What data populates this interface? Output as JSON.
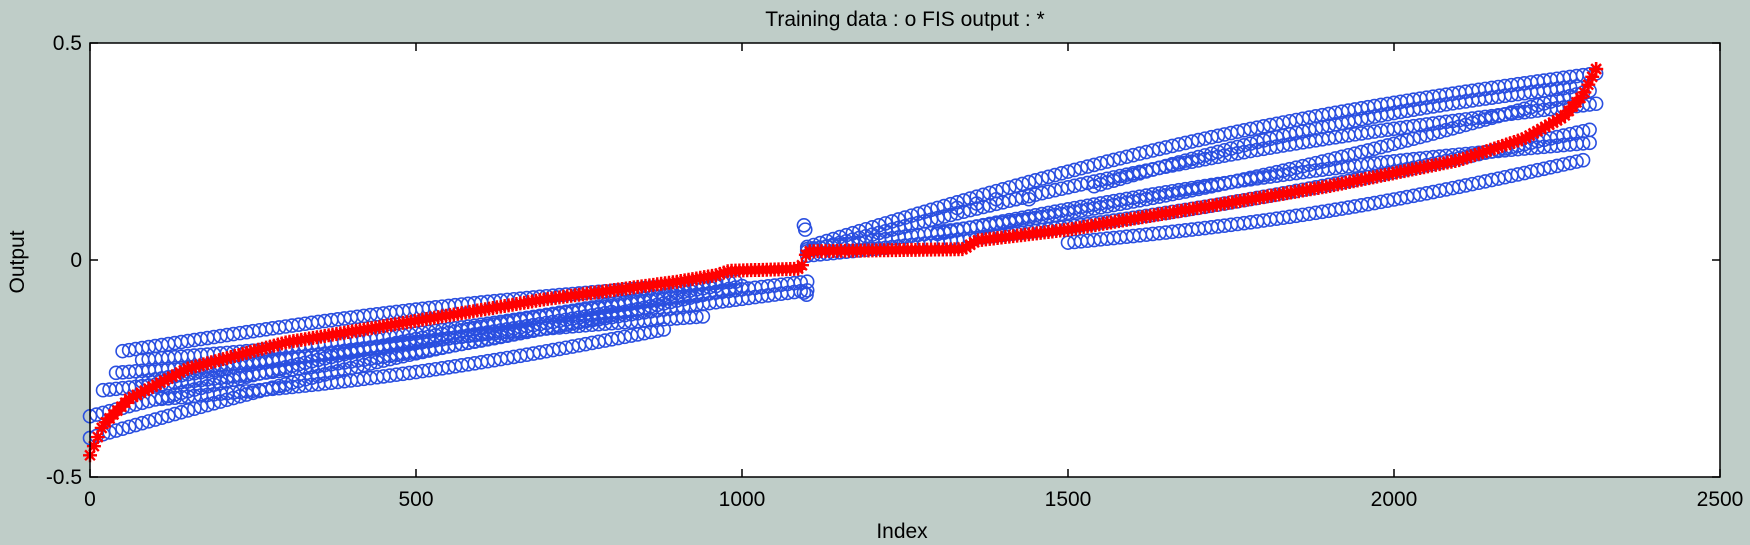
{
  "chart_data": {
    "type": "scatter",
    "title": "Training data : o   FIS output : *",
    "xlabel": "Index",
    "ylabel": "Output",
    "xlim": [
      0,
      2500
    ],
    "ylim": [
      -0.5,
      0.5
    ],
    "x_ticks": [
      {
        "value": 0,
        "label": "0"
      },
      {
        "value": 500,
        "label": "500"
      },
      {
        "value": 1000,
        "label": "1000"
      },
      {
        "value": 1500,
        "label": "1500"
      },
      {
        "value": 2000,
        "label": "2000"
      },
      {
        "value": 2500,
        "label": "2500"
      }
    ],
    "y_ticks": [
      {
        "value": -0.5,
        "label": "-0.5"
      },
      {
        "value": 0,
        "label": "0"
      },
      {
        "value": 0.5,
        "label": "0.5"
      }
    ],
    "grid": false,
    "legend": "none",
    "colors": {
      "background": "#bfcdc8",
      "plot_area": "#ffffff",
      "training": "#2a4fe0",
      "fis": "#ff0000",
      "axis": "#000000"
    },
    "series": [
      {
        "marker": "o",
        "color": "#2a4fe0",
        "sampling_step": 10,
        "bands": [
          {
            "x": [
              0,
              1100
            ],
            "y": [
              -0.36,
              -0.05
            ]
          },
          {
            "x": [
              20,
              1000
            ],
            "y": [
              -0.3,
              -0.06
            ]
          },
          {
            "x": [
              50,
              990
            ],
            "y": [
              -0.21,
              -0.05
            ]
          },
          {
            "x": [
              80,
              960
            ],
            "y": [
              -0.23,
              -0.06
            ]
          },
          {
            "x": [
              0,
              1100
            ],
            "y": [
              -0.41,
              -0.07
            ]
          },
          {
            "x": [
              110,
              880
            ],
            "y": [
              -0.32,
              -0.16
            ]
          },
          {
            "x": [
              80,
              940
            ],
            "y": [
              -0.28,
              -0.13
            ]
          },
          {
            "x": [
              40,
              800
            ],
            "y": [
              -0.26,
              -0.12
            ]
          },
          {
            "x": [
              1100,
              2310
            ],
            "y": [
              0.03,
              0.43
            ]
          },
          {
            "x": [
              1100,
              2300
            ],
            "y": [
              0.025,
              0.39
            ]
          },
          {
            "x": [
              1100,
              2310
            ],
            "y": [
              0.02,
              0.36
            ]
          },
          {
            "x": [
              1100,
              2300
            ],
            "y": [
              0.01,
              0.3
            ]
          },
          {
            "x": [
              1300,
              2300
            ],
            "y": [
              0.06,
              0.27
            ]
          },
          {
            "x": [
              1500,
              2290
            ],
            "y": [
              0.04,
              0.23
            ]
          },
          {
            "x": [
              1540,
              2280
            ],
            "y": [
              0.17,
              0.4
            ]
          }
        ],
        "outliers": [
          {
            "x": 1095,
            "y": 0.08
          },
          {
            "x": 1097,
            "y": 0.07
          },
          {
            "x": 1095,
            "y": -0.075
          },
          {
            "x": 1099,
            "y": -0.08
          },
          {
            "x": 1330,
            "y": 0.12
          },
          {
            "x": 1360,
            "y": 0.13
          },
          {
            "x": 1390,
            "y": 0.14
          },
          {
            "x": 1420,
            "y": 0.14
          },
          {
            "x": 1440,
            "y": 0.14
          }
        ]
      },
      {
        "marker": "*",
        "color": "#ff0000",
        "sampling_step": 6,
        "curve": [
          [
            0,
            -0.45
          ],
          [
            20,
            -0.38
          ],
          [
            60,
            -0.32
          ],
          [
            150,
            -0.25
          ],
          [
            300,
            -0.19
          ],
          [
            500,
            -0.14
          ],
          [
            700,
            -0.09
          ],
          [
            900,
            -0.05
          ],
          [
            960,
            -0.035
          ],
          [
            980,
            -0.025
          ],
          [
            1090,
            -0.02
          ],
          [
            1100,
            0.02
          ],
          [
            1340,
            0.025
          ],
          [
            1360,
            0.045
          ],
          [
            1500,
            0.07
          ],
          [
            1700,
            0.12
          ],
          [
            1900,
            0.17
          ],
          [
            2100,
            0.23
          ],
          [
            2200,
            0.28
          ],
          [
            2260,
            0.33
          ],
          [
            2290,
            0.38
          ],
          [
            2310,
            0.44
          ]
        ]
      }
    ]
  }
}
